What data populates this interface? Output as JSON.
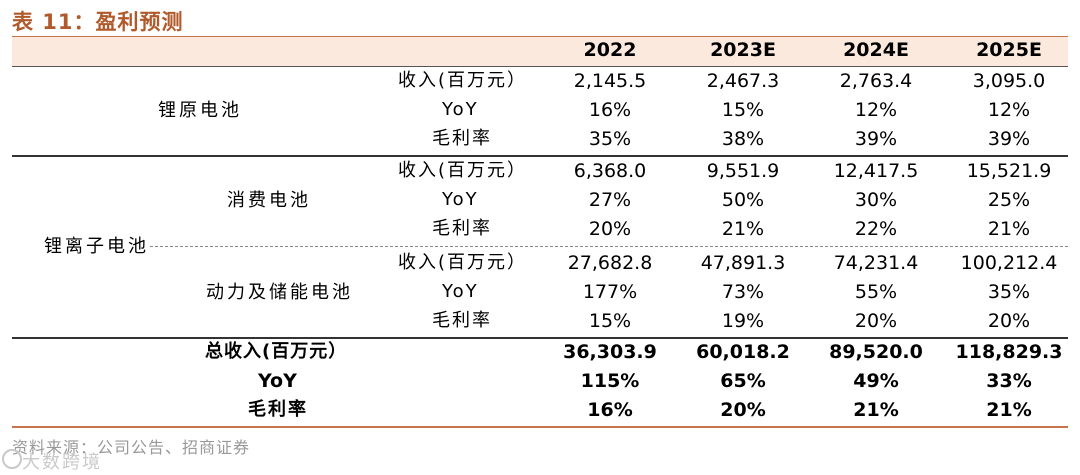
{
  "title": "表 11：盈利预测",
  "header": [
    "2022",
    "2023E",
    "2024E",
    "2025E"
  ],
  "primary": {
    "category": "锂原电池",
    "rows": [
      {
        "label": "收入(百万元）",
        "values": [
          "2,145.5",
          "2,467.3",
          "2,763.4",
          "3,095.0"
        ]
      },
      {
        "label": "YoY",
        "values": [
          "16%",
          "15%",
          "12%",
          "12%"
        ]
      },
      {
        "label": "毛利率",
        "values": [
          "35%",
          "38%",
          "39%",
          "39%"
        ]
      }
    ]
  },
  "ion": {
    "category": "锂离子电池",
    "groups": [
      {
        "name": "消费电池",
        "rows": [
          {
            "label": "收入(百万元）",
            "values": [
              "6,368.0",
              "9,551.9",
              "12,417.5",
              "15,521.9"
            ]
          },
          {
            "label": "YoY",
            "values": [
              "27%",
              "50%",
              "30%",
              "25%"
            ]
          },
          {
            "label": "毛利率",
            "values": [
              "20%",
              "21%",
              "22%",
              "21%"
            ]
          }
        ]
      },
      {
        "name": "动力及储能电池",
        "rows": [
          {
            "label": "收入(百万元）",
            "values": [
              "27,682.8",
              "47,891.3",
              "74,231.4",
              "100,212.4"
            ]
          },
          {
            "label": "YoY",
            "values": [
              "177%",
              "73%",
              "55%",
              "35%"
            ]
          },
          {
            "label": "毛利率",
            "values": [
              "15%",
              "19%",
              "20%",
              "20%"
            ]
          }
        ]
      }
    ]
  },
  "total": {
    "rows": [
      {
        "label": "总收入(百万元）",
        "values": [
          "36,303.9",
          "60,018.2",
          "89,520.0",
          "118,829.3"
        ]
      },
      {
        "label": "YoY",
        "values": [
          "115%",
          "65%",
          "49%",
          "33%"
        ]
      },
      {
        "label": "毛利率",
        "values": [
          "16%",
          "20%",
          "21%",
          "21%"
        ]
      }
    ]
  },
  "source": "资料来源：公司公告、招商证券",
  "watermark": "大数跨境",
  "colors": {
    "accent": "#b05a2c",
    "rule": "#c8744a",
    "header_band": "#fbe9de"
  }
}
